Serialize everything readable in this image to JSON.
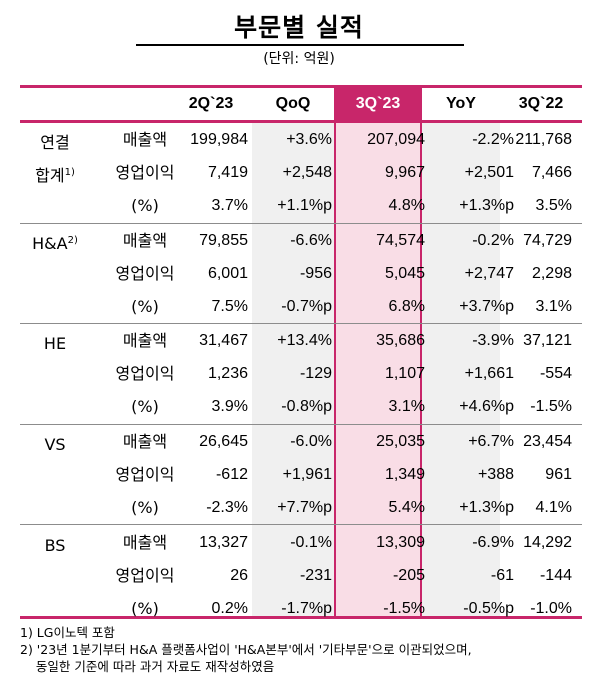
{
  "title": "부문별 실적",
  "unit": "(단위: 억원)",
  "columns": [
    "2Q`23",
    "QoQ",
    "3Q`23",
    "YoY",
    "3Q`22"
  ],
  "accent_color": "#c8266a",
  "highlight_fill": "#f9dde6",
  "band_fill": "#f0f0f0",
  "rows": [
    {
      "segment": "연결",
      "sup": "",
      "metric": "매출액",
      "values": [
        "199,984",
        "+3.6%",
        "207,094",
        "-2.2%",
        "211,768"
      ]
    },
    {
      "segment": "합계",
      "sup": "1)",
      "metric": "영업이익",
      "values": [
        "7,419",
        "+2,548",
        "9,967",
        "+2,501",
        "7,466"
      ]
    },
    {
      "segment": "",
      "sup": "",
      "metric": "(%)",
      "values": [
        "3.7%",
        "+1.1%p",
        "4.8%",
        "+1.3%p",
        "3.5%"
      ]
    },
    {
      "segment": "H&A",
      "sup": "2)",
      "metric": "매출액",
      "values": [
        "79,855",
        "-6.6%",
        "74,574",
        "-0.2%",
        "74,729"
      ]
    },
    {
      "segment": "",
      "sup": "",
      "metric": "영업이익",
      "values": [
        "6,001",
        "-956",
        "5,045",
        "+2,747",
        "2,298"
      ]
    },
    {
      "segment": "",
      "sup": "",
      "metric": "(%)",
      "values": [
        "7.5%",
        "-0.7%p",
        "6.8%",
        "+3.7%p",
        "3.1%"
      ]
    },
    {
      "segment": "HE",
      "sup": "",
      "metric": "매출액",
      "values": [
        "31,467",
        "+13.4%",
        "35,686",
        "-3.9%",
        "37,121"
      ]
    },
    {
      "segment": "",
      "sup": "",
      "metric": "영업이익",
      "values": [
        "1,236",
        "-129",
        "1,107",
        "+1,661",
        "-554"
      ]
    },
    {
      "segment": "",
      "sup": "",
      "metric": "(%)",
      "values": [
        "3.9%",
        "-0.8%p",
        "3.1%",
        "+4.6%p",
        "-1.5%"
      ]
    },
    {
      "segment": "VS",
      "sup": "",
      "metric": "매출액",
      "values": [
        "26,645",
        "-6.0%",
        "25,035",
        "+6.7%",
        "23,454"
      ]
    },
    {
      "segment": "",
      "sup": "",
      "metric": "영업이익",
      "values": [
        "-612",
        "+1,961",
        "1,349",
        "+388",
        "961"
      ]
    },
    {
      "segment": "",
      "sup": "",
      "metric": "(%)",
      "values": [
        "-2.3%",
        "+7.7%p",
        "5.4%",
        "+1.3%p",
        "4.1%"
      ]
    },
    {
      "segment": "BS",
      "sup": "",
      "metric": "매출액",
      "values": [
        "13,327",
        "-0.1%",
        "13,309",
        "-6.9%",
        "14,292"
      ]
    },
    {
      "segment": "",
      "sup": "",
      "metric": "영업이익",
      "values": [
        "26",
        "-231",
        "-205",
        "-61",
        "-144"
      ]
    },
    {
      "segment": "",
      "sup": "",
      "metric": "(%)",
      "values": [
        "0.2%",
        "-1.7%p",
        "-1.5%",
        "-0.5%p",
        "-1.0%"
      ]
    }
  ],
  "notes": [
    "1) LG이노텍 포함",
    "2) '23년 1분기부터 H&A 플랫폼사업이 'H&A본부'에서 '기타부문'으로 이관되었으며,",
    "    동일한 기준에 따라 과거 자료도 재작성하였음"
  ]
}
